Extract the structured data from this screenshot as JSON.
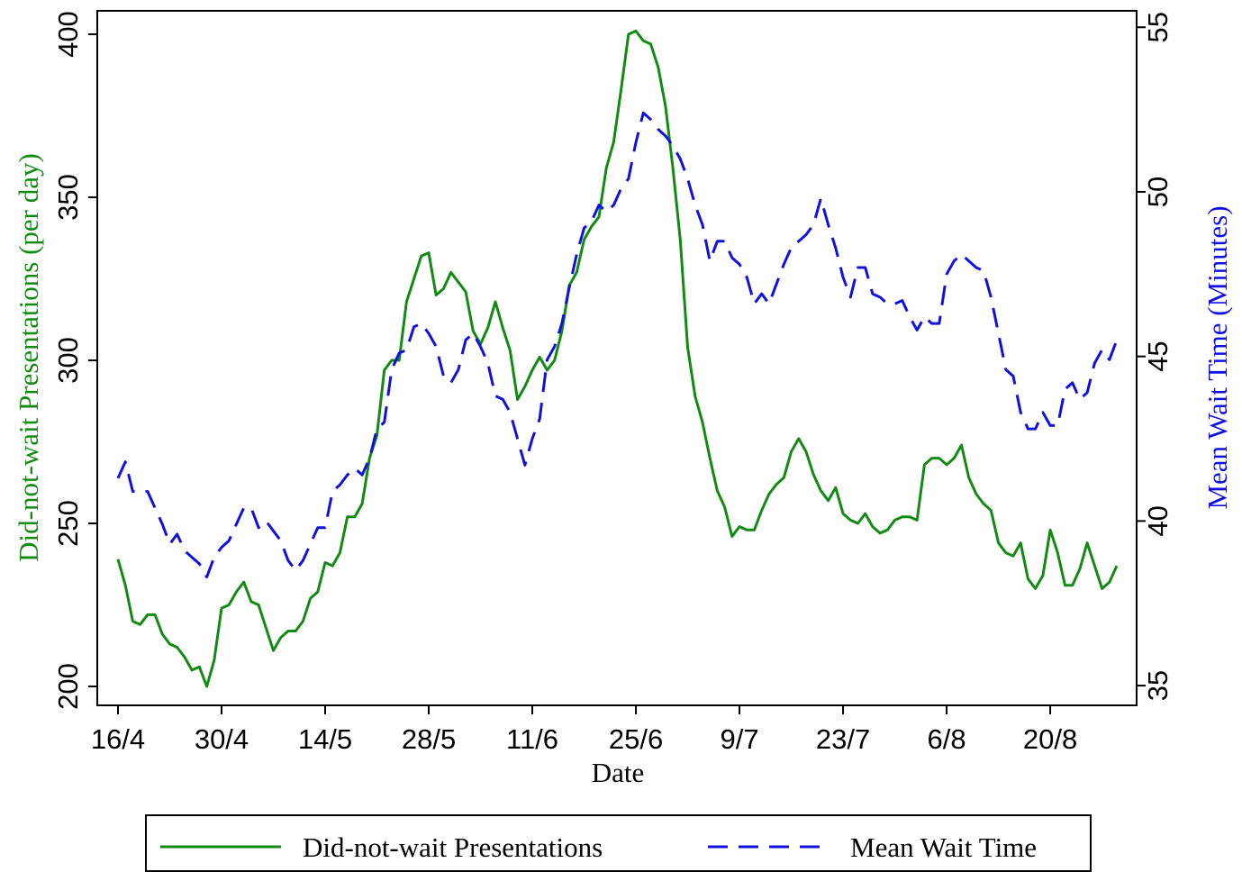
{
  "chart_data": {
    "type": "line",
    "xlabel": "Date",
    "ylabel": "Did-not-wait Presentations (per day)",
    "y2label": "Mean Wait Time (Minutes)",
    "categories": [
      "16/4",
      null,
      null,
      null,
      null,
      null,
      null,
      null,
      null,
      null,
      null,
      null,
      null,
      null,
      "30/4",
      null,
      null,
      null,
      null,
      null,
      null,
      null,
      null,
      null,
      null,
      null,
      null,
      null,
      "14/5",
      null,
      null,
      null,
      null,
      null,
      null,
      null,
      null,
      null,
      null,
      null,
      null,
      null,
      "28/5",
      null,
      null,
      null,
      null,
      null,
      null,
      null,
      null,
      null,
      null,
      null,
      null,
      null,
      "11/6",
      null,
      null,
      null,
      null,
      null,
      null,
      null,
      null,
      null,
      null,
      null,
      null,
      null,
      "25/6",
      null,
      null,
      null,
      null,
      null,
      null,
      null,
      null,
      null,
      null,
      null,
      null,
      null,
      "9/7",
      null,
      null,
      null,
      null,
      null,
      null,
      null,
      null,
      null,
      null,
      null,
      null,
      null,
      "23/7",
      null,
      null,
      null,
      null,
      null,
      null,
      null,
      null,
      null,
      null,
      null,
      null,
      null,
      "6/8",
      null,
      null,
      null,
      null,
      null,
      null,
      null,
      null,
      null,
      null,
      null,
      null,
      null,
      "20/8",
      null,
      null,
      null,
      null,
      null,
      null,
      null,
      null,
      null
    ],
    "series": [
      {
        "name": "Did-not-wait Presentations",
        "color": "#138a13",
        "dash": false,
        "axis": "y",
        "values": [
          239,
          231,
          220,
          219,
          222,
          222,
          216,
          213,
          212,
          209,
          205,
          206,
          200,
          208,
          224,
          225,
          229,
          232,
          226,
          225,
          218,
          211,
          215,
          217,
          217,
          220,
          227,
          229,
          238,
          237,
          241,
          252,
          252,
          256,
          270,
          277,
          297,
          300,
          300,
          318,
          325,
          332,
          333,
          320,
          322,
          327,
          324,
          321,
          309,
          305,
          310,
          318,
          310,
          303,
          288,
          292,
          297,
          301,
          297,
          300,
          309,
          323,
          327,
          337,
          341,
          344,
          359,
          367,
          383,
          400,
          401,
          398,
          397,
          390,
          378,
          359,
          337,
          304,
          289,
          281,
          270,
          260,
          255,
          246,
          249,
          248,
          248,
          254,
          259,
          262,
          264,
          272,
          276,
          272,
          265,
          260,
          257,
          261,
          253,
          251,
          250,
          253,
          249,
          247,
          248,
          251,
          252,
          252,
          251,
          268,
          270,
          270,
          268,
          270,
          274,
          264,
          259,
          256,
          254,
          244,
          241,
          240,
          244,
          233,
          230,
          234,
          248,
          241,
          231,
          231,
          236,
          244,
          237,
          230,
          232,
          237
        ]
      },
      {
        "name": "Mean Wait Time",
        "color": "#1010e0",
        "dash": true,
        "axis": "y2",
        "values": [
          41.3,
          41.8,
          40.9,
          40.9,
          40.9,
          40.4,
          39.9,
          39.3,
          39.6,
          39.1,
          38.9,
          38.7,
          38.3,
          38.9,
          39.2,
          39.4,
          39.9,
          40.4,
          40.4,
          39.8,
          40.0,
          39.7,
          39.4,
          38.8,
          38.5,
          38.8,
          39.3,
          39.8,
          39.8,
          40.9,
          41.1,
          41.4,
          41.6,
          41.4,
          41.9,
          42.8,
          43.0,
          44.6,
          45.1,
          45.2,
          45.9,
          46.0,
          45.7,
          45.3,
          44.4,
          44.2,
          44.6,
          45.5,
          45.7,
          45.3,
          44.8,
          43.8,
          43.7,
          43.3,
          42.5,
          41.7,
          42.5,
          43.1,
          44.9,
          45.3,
          46.0,
          47.1,
          48.1,
          48.9,
          49.1,
          49.6,
          49.4,
          49.6,
          50.1,
          50.4,
          51.5,
          52.4,
          52.2,
          51.9,
          51.7,
          51.4,
          51.0,
          50.4,
          49.6,
          49.0,
          47.9,
          48.5,
          48.5,
          48.0,
          47.8,
          47.4,
          46.6,
          46.9,
          46.6,
          47.2,
          47.8,
          48.3,
          48.5,
          48.7,
          49.0,
          49.8,
          49.0,
          48.3,
          47.4,
          46.8,
          47.7,
          47.7,
          46.9,
          46.8,
          46.6,
          46.6,
          46.7,
          46.2,
          45.8,
          46.2,
          46.0,
          46.0,
          47.5,
          47.9,
          48.1,
          47.9,
          47.7,
          47.6,
          46.8,
          45.7,
          44.6,
          44.4,
          43.3,
          42.8,
          42.8,
          43.3,
          42.9,
          42.9,
          44.0,
          44.2,
          43.7,
          43.9,
          44.8,
          45.2,
          44.9,
          45.5
        ]
      }
    ],
    "ylim": [
      194.2,
      407.2
    ],
    "yticks": [
      200,
      250,
      300,
      350,
      400
    ],
    "y2lim": [
      34.4,
      55.5
    ],
    "y2ticks": [
      35,
      40,
      45,
      50,
      55
    ],
    "grid": false,
    "legend": "bottom"
  }
}
